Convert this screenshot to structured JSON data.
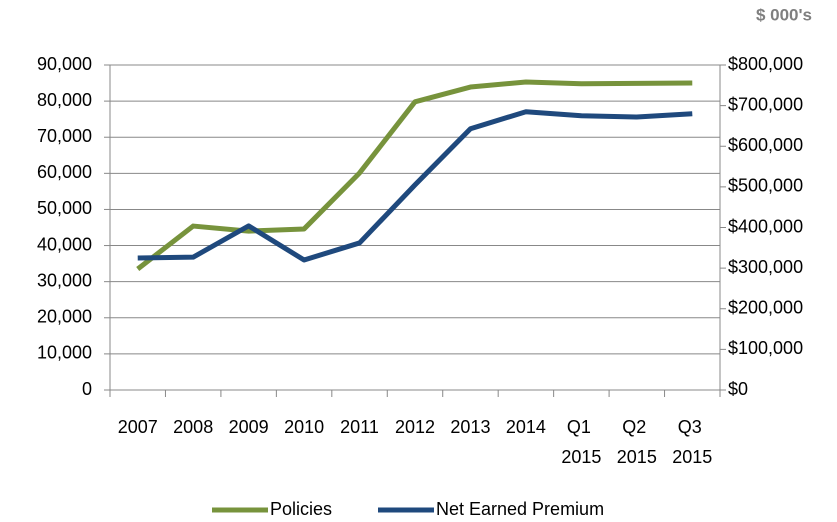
{
  "chart_data": {
    "type": "line",
    "annotation": "$ 000's",
    "categories": [
      "2007",
      "2008",
      "2009",
      "2010",
      "2011",
      "2012",
      "2013",
      "2014",
      "Q1 2015",
      "Q2 2015",
      "Q3 2015"
    ],
    "series": [
      {
        "name": "Policies",
        "color": "#77933c",
        "values": [
          33500,
          45400,
          44000,
          44600,
          60100,
          79800,
          83900,
          85300,
          84800,
          84900,
          85000
        ]
      },
      {
        "name": "Net Earned Premium",
        "color": "#1f497d",
        "axis": "y2",
        "values": [
          325000,
          327000,
          404000,
          320000,
          362000,
          505000,
          643000,
          685000,
          675000,
          672000,
          680000
        ]
      }
    ],
    "ylim": [
      0,
      90000
    ],
    "yticks": [
      0,
      {
        "value": 10000,
        "label": "10,000"
      },
      {
        "value": 20000,
        "label": "20,000"
      },
      {
        "value": 30000,
        "label": "30,000"
      },
      {
        "value": 40000,
        "label": "40,000"
      },
      {
        "value": 50000,
        "label": "50,000"
      },
      {
        "value": 60000,
        "label": "60,000"
      },
      {
        "value": 70000,
        "label": "70,000"
      },
      {
        "value": 80000,
        "label": "80,000"
      },
      {
        "value": 90000,
        "label": "90,000"
      }
    ],
    "y2lim": [
      0,
      800000
    ],
    "y2ticks": [
      {
        "value": 0,
        "label": "$0"
      },
      {
        "value": 100000,
        "label": "$100,000"
      },
      {
        "value": 200000,
        "label": "$200,000"
      },
      {
        "value": 300000,
        "label": "$300,000"
      },
      {
        "value": 400000,
        "label": "$400,000"
      },
      {
        "value": 500000,
        "label": "$500,000"
      },
      {
        "value": 600000,
        "label": "$600,000"
      },
      {
        "value": 700000,
        "label": "$700,000"
      },
      {
        "value": 800000,
        "label": "$800,000"
      }
    ],
    "grid": true,
    "legend": "bottom"
  }
}
